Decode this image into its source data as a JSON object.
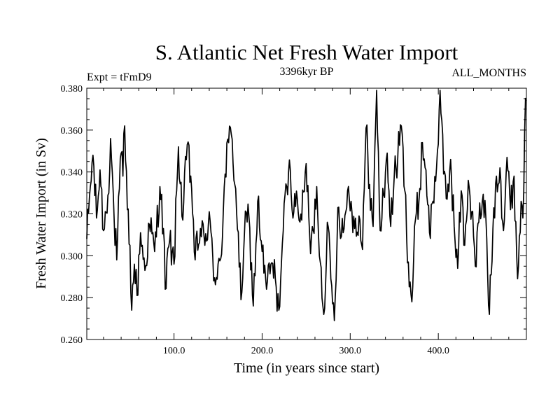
{
  "chart_data": {
    "type": "line",
    "title": "S. Atlantic Net Fresh Water Import",
    "subtitle_left": "Expt = tFmD9",
    "subtitle_center": "3396kyr BP",
    "subtitle_right": "ALL_MONTHS",
    "xlabel": "Time (in years since start)",
    "ylabel": "Fresh Water Import (in Sv)",
    "xlim": [
      1,
      500
    ],
    "ylim": [
      0.26,
      0.38
    ],
    "x_major_ticks": [
      100,
      200,
      300,
      400
    ],
    "x_tick_labels": [
      "100.0",
      "200.0",
      "300.0",
      "400.0"
    ],
    "y_major_ticks": [
      0.26,
      0.28,
      0.3,
      0.32,
      0.34,
      0.36,
      0.38
    ],
    "y_tick_labels": [
      "0.260",
      "0.280",
      "0.300",
      "0.320",
      "0.340",
      "0.360",
      "0.380"
    ],
    "x_minor_step": 20,
    "y_minor_step": 0.005,
    "grid": false,
    "series": [
      {
        "name": "Fresh Water Import",
        "x_start": 1,
        "x_step": 1,
        "keypoints": [
          [
            1,
            0.308
          ],
          [
            5,
            0.333
          ],
          [
            8,
            0.348
          ],
          [
            12,
            0.318
          ],
          [
            16,
            0.341
          ],
          [
            20,
            0.312
          ],
          [
            25,
            0.329
          ],
          [
            28,
            0.356
          ],
          [
            32,
            0.318
          ],
          [
            35,
            0.298
          ],
          [
            38,
            0.332
          ],
          [
            40,
            0.349
          ],
          [
            42,
            0.338
          ],
          [
            44,
            0.362
          ],
          [
            47,
            0.322
          ],
          [
            50,
            0.305
          ],
          [
            52,
            0.274
          ],
          [
            55,
            0.296
          ],
          [
            58,
            0.281
          ],
          [
            62,
            0.311
          ],
          [
            67,
            0.293
          ],
          [
            72,
            0.315
          ],
          [
            78,
            0.302
          ],
          [
            84,
            0.333
          ],
          [
            88,
            0.313
          ],
          [
            90,
            0.284
          ],
          [
            95,
            0.307
          ],
          [
            100,
            0.296
          ],
          [
            105,
            0.352
          ],
          [
            110,
            0.317
          ],
          [
            115,
            0.353
          ],
          [
            120,
            0.332
          ],
          [
            124,
            0.298
          ],
          [
            130,
            0.313
          ],
          [
            135,
            0.305
          ],
          [
            140,
            0.321
          ],
          [
            145,
            0.288
          ],
          [
            150,
            0.296
          ],
          [
            155,
            0.309
          ],
          [
            158,
            0.339
          ],
          [
            162,
            0.354
          ],
          [
            165,
            0.358
          ],
          [
            170,
            0.332
          ],
          [
            176,
            0.279
          ],
          [
            180,
            0.311
          ],
          [
            185,
            0.319
          ],
          [
            190,
            0.276
          ],
          [
            195,
            0.326
          ],
          [
            200,
            0.302
          ],
          [
            205,
            0.284
          ],
          [
            210,
            0.296
          ],
          [
            215,
            0.289
          ],
          [
            219,
            0.274
          ],
          [
            224,
            0.312
          ],
          [
            228,
            0.333
          ],
          [
            232,
            0.341
          ],
          [
            236,
            0.321
          ],
          [
            240,
            0.327
          ],
          [
            245,
            0.317
          ],
          [
            250,
            0.344
          ],
          [
            255,
            0.301
          ],
          [
            258,
            0.312
          ],
          [
            262,
            0.333
          ],
          [
            266,
            0.297
          ],
          [
            270,
            0.272
          ],
          [
            274,
            0.316
          ],
          [
            278,
            0.289
          ],
          [
            282,
            0.269
          ],
          [
            286,
            0.323
          ],
          [
            292,
            0.311
          ],
          [
            297,
            0.331
          ],
          [
            301,
            0.326
          ],
          [
            305,
            0.313
          ],
          [
            310,
            0.319
          ],
          [
            314,
            0.303
          ],
          [
            318,
            0.361
          ],
          [
            322,
            0.334
          ],
          [
            326,
            0.314
          ],
          [
            330,
            0.379
          ],
          [
            334,
            0.312
          ],
          [
            338,
            0.329
          ],
          [
            342,
            0.349
          ],
          [
            346,
            0.314
          ],
          [
            350,
            0.338
          ],
          [
            354,
            0.347
          ],
          [
            358,
            0.362
          ],
          [
            362,
            0.331
          ],
          [
            366,
            0.297
          ],
          [
            370,
            0.278
          ],
          [
            374,
            0.317
          ],
          [
            378,
            0.326
          ],
          [
            382,
            0.354
          ],
          [
            386,
            0.341
          ],
          [
            390,
            0.311
          ],
          [
            394,
            0.326
          ],
          [
            398,
            0.342
          ],
          [
            402,
            0.379
          ],
          [
            406,
            0.339
          ],
          [
            410,
            0.327
          ],
          [
            414,
            0.346
          ],
          [
            418,
            0.314
          ],
          [
            422,
            0.294
          ],
          [
            426,
            0.331
          ],
          [
            430,
            0.305
          ],
          [
            434,
            0.336
          ],
          [
            438,
            0.321
          ],
          [
            442,
            0.295
          ],
          [
            446,
            0.316
          ],
          [
            450,
            0.326
          ],
          [
            454,
            0.318
          ],
          [
            458,
            0.272
          ],
          [
            462,
            0.313
          ],
          [
            466,
            0.338
          ],
          [
            470,
            0.342
          ],
          [
            474,
            0.312
          ],
          [
            478,
            0.347
          ],
          [
            482,
            0.322
          ],
          [
            486,
            0.338
          ],
          [
            490,
            0.289
          ],
          [
            494,
            0.326
          ],
          [
            496,
            0.318
          ],
          [
            498,
            0.359
          ],
          [
            500,
            0.374
          ]
        ]
      }
    ]
  }
}
